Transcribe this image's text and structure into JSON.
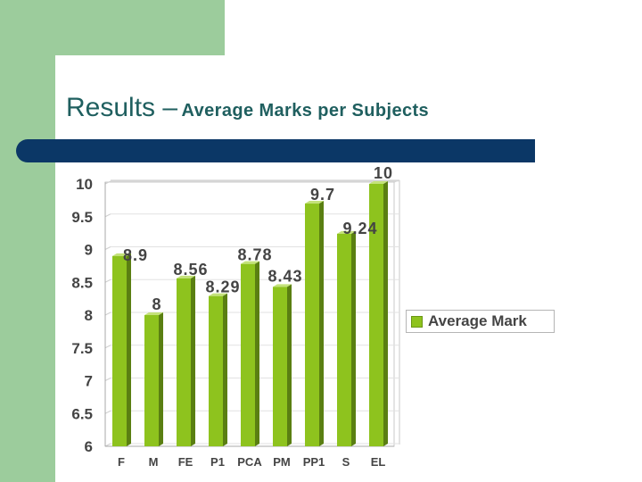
{
  "slide": {
    "title_main": "Results –",
    "title_sub": "Average Marks per Subjects"
  },
  "colors": {
    "background_band": "#9ccc9c",
    "title": "#1f5f5f",
    "rule": "#0b3766",
    "bar_front": "#8ec31e",
    "bar_side": "#5a7f12",
    "bar_top": "#c4e27a",
    "label": "#444444"
  },
  "chart_data": {
    "type": "bar",
    "categories": [
      "F",
      "M",
      "FE",
      "P1",
      "PCA",
      "PM",
      "PP1",
      "S",
      "EL"
    ],
    "series": [
      {
        "name": "Average Mark",
        "values": [
          8.9,
          8,
          8.56,
          8.29,
          8.78,
          8.43,
          9.7,
          9.24,
          10
        ],
        "data_labels": [
          "8.9",
          "8",
          "8.56",
          "8.29",
          "8.78",
          "8.43",
          "9.7",
          "9.24",
          "10"
        ]
      }
    ],
    "ylim": [
      6,
      10
    ],
    "y_ticks": [
      "6",
      "6.5",
      "7",
      "7.5",
      "8",
      "8.5",
      "9",
      "9.5",
      "10"
    ],
    "grid": true,
    "legend_position": "right"
  }
}
